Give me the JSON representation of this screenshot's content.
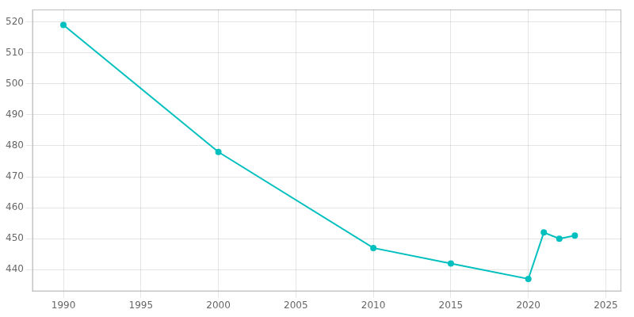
{
  "chart_data": {
    "type": "line",
    "x": [
      1990,
      2000,
      2010,
      2015,
      2020,
      2021,
      2022,
      2023
    ],
    "values": [
      519,
      478,
      447,
      442,
      437,
      452,
      450,
      451
    ],
    "color": "#00BFBF",
    "marker": "circle",
    "xlim": [
      1988,
      2026
    ],
    "xticks": [
      1990,
      1995,
      2000,
      2005,
      2010,
      2015,
      2020,
      2025
    ],
    "ylim": [
      433,
      524
    ],
    "yticks": [
      440,
      450,
      460,
      470,
      480,
      490,
      500,
      510,
      520
    ],
    "grid": true
  }
}
